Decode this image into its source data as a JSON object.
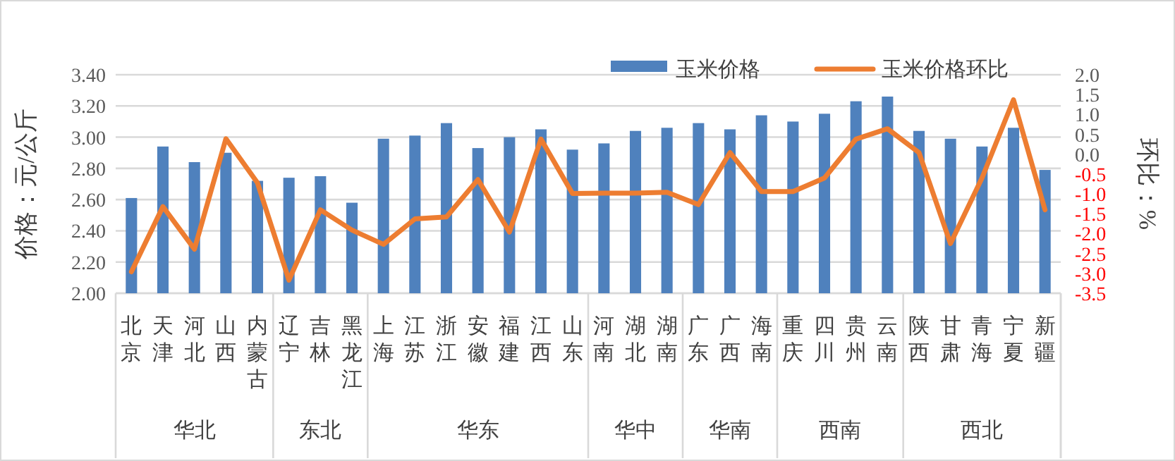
{
  "chart_data": {
    "type": "bar",
    "ylabel": "价格：元/公斤",
    "y2label": "环比：%",
    "categories": [
      "北京",
      "天津",
      "河北",
      "山西",
      "内蒙古",
      "辽宁",
      "吉林",
      "黑龙江",
      "上海",
      "江苏",
      "浙江",
      "安徽",
      "福建",
      "江西",
      "山东",
      "河南",
      "湖北",
      "湖南",
      "广东",
      "广西",
      "海南",
      "重庆",
      "四川",
      "贵州",
      "云南",
      "陕西",
      "甘肃",
      "青海",
      "宁夏",
      "新疆"
    ],
    "series": [
      {
        "name": "玉米价格",
        "color": "#4f81bd",
        "values": [
          2.61,
          2.94,
          2.84,
          2.9,
          2.72,
          2.74,
          2.75,
          2.58,
          2.99,
          3.01,
          3.09,
          2.93,
          3.0,
          3.05,
          2.92,
          2.96,
          3.04,
          3.06,
          3.09,
          3.05,
          3.14,
          3.1,
          3.15,
          3.23,
          3.26,
          3.04,
          2.99,
          2.94,
          3.06,
          2.79
        ]
      },
      {
        "name": "玉米价格环比",
        "type": "line",
        "axis": "y2",
        "color": "#ed7d31",
        "values": [
          -2.96,
          -1.32,
          -2.39,
          0.39,
          -0.72,
          -3.17,
          -1.4,
          -1.91,
          -2.27,
          -1.63,
          -1.58,
          -0.64,
          -1.96,
          0.38,
          -0.99,
          -0.98,
          -0.98,
          -0.96,
          -1.27,
          0.04,
          -0.94,
          -0.94,
          -0.6,
          0.38,
          0.64,
          0.04,
          -2.25,
          -0.6,
          1.37,
          -1.4
        ]
      }
    ],
    "ylim": [
      2.0,
      3.4
    ],
    "yticks": [
      {
        "value": 2.0,
        "label": "2.00"
      },
      {
        "value": 2.2,
        "label": "2.20"
      },
      {
        "value": 2.4,
        "label": "2.40"
      },
      {
        "value": 2.6,
        "label": "2.60"
      },
      {
        "value": 2.8,
        "label": "2.80"
      },
      {
        "value": 3.0,
        "label": "3.00"
      },
      {
        "value": 3.2,
        "label": "3.20"
      },
      {
        "value": 3.4,
        "label": "3.40"
      }
    ],
    "y2lim": [
      -3.5,
      2.0
    ],
    "y2ticks": [
      {
        "value": 2.0,
        "label": "2.0"
      },
      {
        "value": 1.5,
        "label": "1.5"
      },
      {
        "value": 1.0,
        "label": "1.0"
      },
      {
        "value": 0.5,
        "label": "0.5"
      },
      {
        "value": 0.0,
        "label": "0.0"
      },
      {
        "value": -0.5,
        "label": "-0.5"
      },
      {
        "value": -1.0,
        "label": "-1.0"
      },
      {
        "value": -1.5,
        "label": "-1.5"
      },
      {
        "value": -2.0,
        "label": "-2.0"
      },
      {
        "value": -2.5,
        "label": "-2.5"
      },
      {
        "value": -3.0,
        "label": "-3.0"
      },
      {
        "value": -3.5,
        "label": "-3.5"
      }
    ],
    "annotations": [
      "华北",
      "东北",
      "华东",
      "华中",
      "华南",
      "西南",
      "西北"
    ],
    "grid": "y",
    "legend": "top",
    "marker": "none",
    "line_style": "solid"
  }
}
